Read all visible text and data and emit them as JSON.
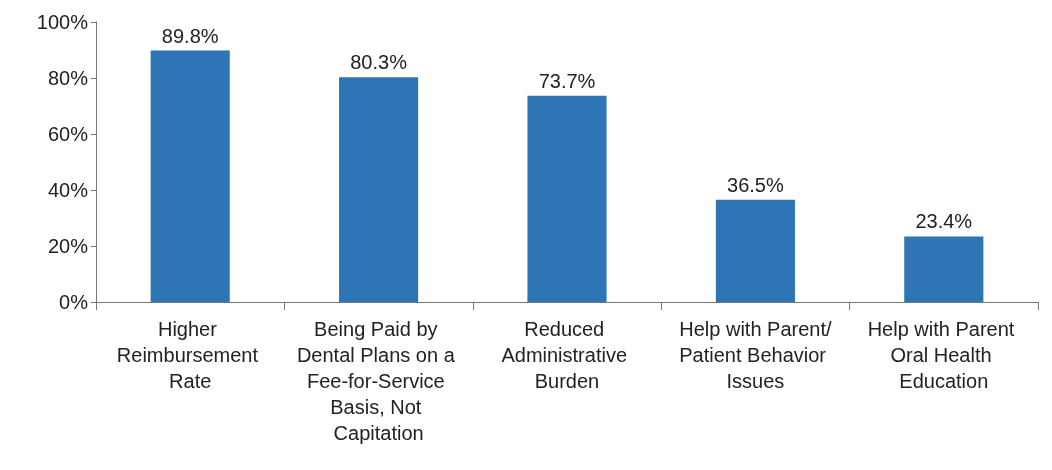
{
  "chart_data": {
    "type": "bar",
    "categories": [
      "Higher Reimbursement Rate",
      "Being Paid by Dental Plans on a Fee-for-Service Basis, Not Capitation",
      "Reduced Administrative Burden",
      "Help with Parent/Patient Behavior Issues",
      "Help with Parent Oral Health Education"
    ],
    "values": [
      89.8,
      80.3,
      73.7,
      36.5,
      23.4
    ],
    "value_labels": [
      "89.8%",
      "80.3%",
      "73.7%",
      "36.5%",
      "23.4%"
    ],
    "color": "#2e75b6",
    "ylim": [
      0,
      100
    ],
    "yticks": [
      {
        "value": 0,
        "label": "0%"
      },
      {
        "value": 20,
        "label": "20%"
      },
      {
        "value": 40,
        "label": "40%"
      },
      {
        "value": 60,
        "label": "60%"
      },
      {
        "value": 80,
        "label": "80%"
      },
      {
        "value": 100,
        "label": "100%"
      }
    ],
    "grid": false
  }
}
